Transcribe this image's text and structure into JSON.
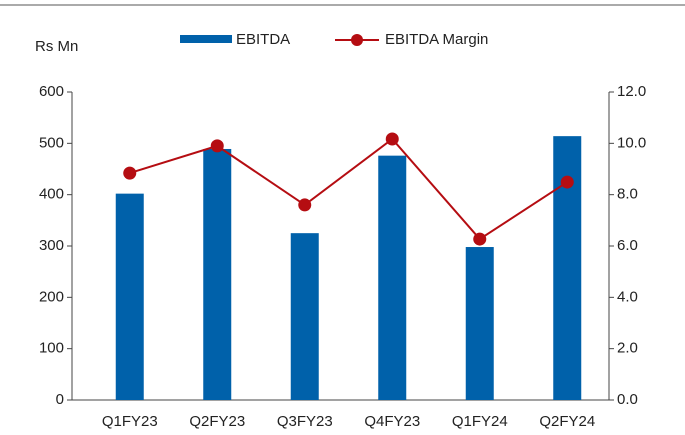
{
  "chart_data": {
    "type": "bar-line",
    "y_label": "Rs Mn",
    "categories": [
      "Q1FY23",
      "Q2FY23",
      "Q3FY23",
      "Q4FY23",
      "Q1FY24",
      "Q2FY24"
    ],
    "series": [
      {
        "name": "EBITDA",
        "type": "bar",
        "color": "#0061aa",
        "values": [
          402,
          489,
          325,
          476,
          298,
          514
        ]
      },
      {
        "name": "EBITDA Margin",
        "type": "line",
        "axis": "y2",
        "color": "#b50d12",
        "values": [
          8.84,
          9.9,
          7.6,
          10.17,
          6.27,
          8.49
        ]
      }
    ],
    "ylim": [
      0,
      600
    ],
    "yticks": [
      0,
      100,
      200,
      300,
      400,
      500,
      600
    ],
    "y2lim": [
      0,
      12
    ],
    "y2ticks": [
      {
        "value": 0,
        "label": "0.0"
      },
      {
        "value": 2,
        "label": "2.0"
      },
      {
        "value": 4,
        "label": "4.0"
      },
      {
        "value": 6,
        "label": "6.0"
      },
      {
        "value": 8,
        "label": "8.0"
      },
      {
        "value": 10,
        "label": "10.0"
      },
      {
        "value": 12,
        "label": "12.0"
      }
    ],
    "legend": "top"
  }
}
